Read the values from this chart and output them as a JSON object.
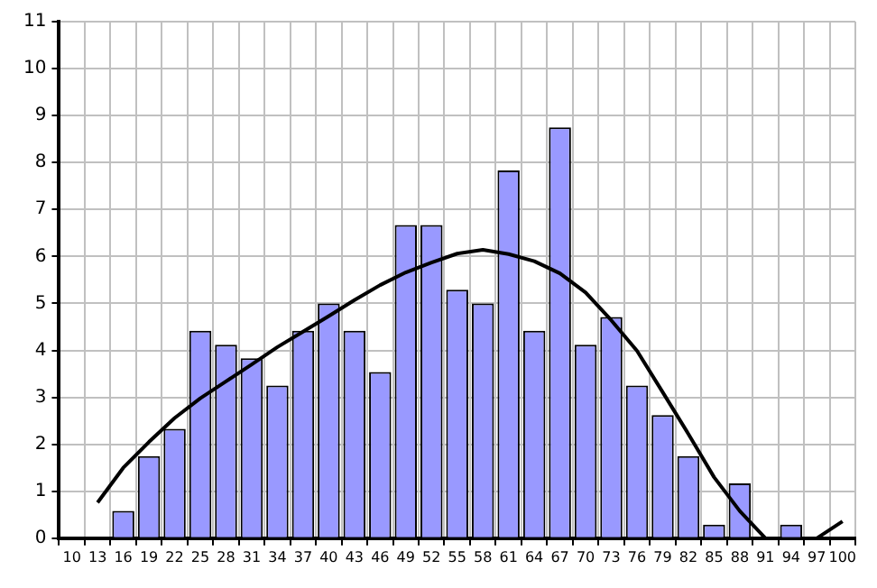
{
  "chart_data": {
    "type": "bar",
    "categories": [
      "10",
      "13",
      "16",
      "19",
      "22",
      "25",
      "28",
      "31",
      "34",
      "37",
      "40",
      "43",
      "46",
      "49",
      "52",
      "55",
      "58",
      "61",
      "64",
      "67",
      "70",
      "73",
      "76",
      "79",
      "82",
      "85",
      "88",
      "91",
      "94",
      "97",
      "100"
    ],
    "series": [
      {
        "color": "#9999ff",
        "values": [
          0,
          0,
          0.58,
          1.75,
          2.33,
          4.42,
          4.12,
          3.83,
          3.25,
          4.42,
          5.0,
          4.42,
          3.54,
          6.67,
          6.67,
          5.29,
          5.0,
          7.83,
          4.42,
          8.75,
          4.12,
          4.71,
          3.25,
          2.62,
          1.75,
          0.29,
          1.17,
          0,
          0.29,
          0,
          0
        ]
      },
      {
        "type": "line",
        "color": "#000000",
        "values": [
          null,
          0.76,
          1.5,
          2.05,
          2.56,
          2.98,
          3.34,
          3.7,
          4.07,
          4.4,
          4.73,
          5.07,
          5.39,
          5.66,
          5.87,
          6.06,
          6.14,
          6.05,
          5.9,
          5.64,
          5.23,
          4.64,
          3.99,
          3.11,
          2.22,
          1.3,
          0.58,
          0,
          null,
          0,
          0.36
        ]
      }
    ],
    "ylim": [
      0,
      11
    ],
    "yticks": [
      0,
      1,
      2,
      3,
      4,
      5,
      6,
      7,
      8,
      9,
      10,
      11
    ],
    "grid": true,
    "legend": false,
    "marker": "none",
    "line_style": "solid"
  }
}
